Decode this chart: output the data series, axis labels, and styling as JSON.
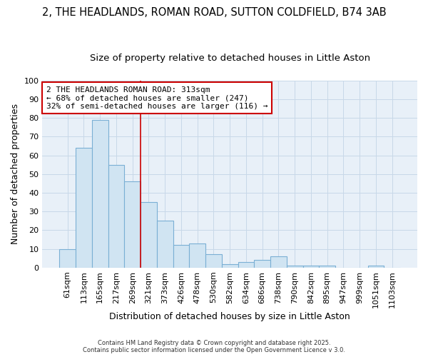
{
  "title_line1": "2, THE HEADLANDS, ROMAN ROAD, SUTTON COLDFIELD, B74 3AB",
  "title_line2": "Size of property relative to detached houses in Little Aston",
  "xlabel": "Distribution of detached houses by size in Little Aston",
  "ylabel": "Number of detached properties",
  "bar_labels": [
    "61sqm",
    "113sqm",
    "165sqm",
    "217sqm",
    "269sqm",
    "321sqm",
    "373sqm",
    "426sqm",
    "478sqm",
    "530sqm",
    "582sqm",
    "634sqm",
    "686sqm",
    "738sqm",
    "790sqm",
    "842sqm",
    "895sqm",
    "947sqm",
    "999sqm",
    "1051sqm",
    "1103sqm"
  ],
  "bar_values": [
    10,
    64,
    79,
    55,
    46,
    35,
    25,
    12,
    13,
    7,
    2,
    3,
    4,
    6,
    1,
    1,
    1,
    0,
    0,
    1,
    0
  ],
  "bar_color": "#d0e4f2",
  "bar_edgecolor": "#7aafd4",
  "bar_linewidth": 0.8,
  "vline_x_index": 5,
  "vline_color": "#cc0000",
  "vline_linewidth": 1.2,
  "annotation_text": "2 THE HEADLANDS ROMAN ROAD: 313sqm\n← 68% of detached houses are smaller (247)\n32% of semi-detached houses are larger (116) →",
  "annotation_box_edgecolor": "#cc0000",
  "annotation_box_facecolor": "#ffffff",
  "ylim": [
    0,
    100
  ],
  "yticks": [
    0,
    10,
    20,
    30,
    40,
    50,
    60,
    70,
    80,
    90,
    100
  ],
  "grid_color": "#c8d8e8",
  "background_color": "#ffffff",
  "plot_background_color": "#e8f0f8",
  "footer_text": "Contains HM Land Registry data © Crown copyright and database right 2025.\nContains public sector information licensed under the Open Government Licence v 3.0.",
  "title_fontsize": 10.5,
  "subtitle_fontsize": 9.5,
  "axis_label_fontsize": 9,
  "tick_fontsize": 8,
  "annotation_fontsize": 8
}
